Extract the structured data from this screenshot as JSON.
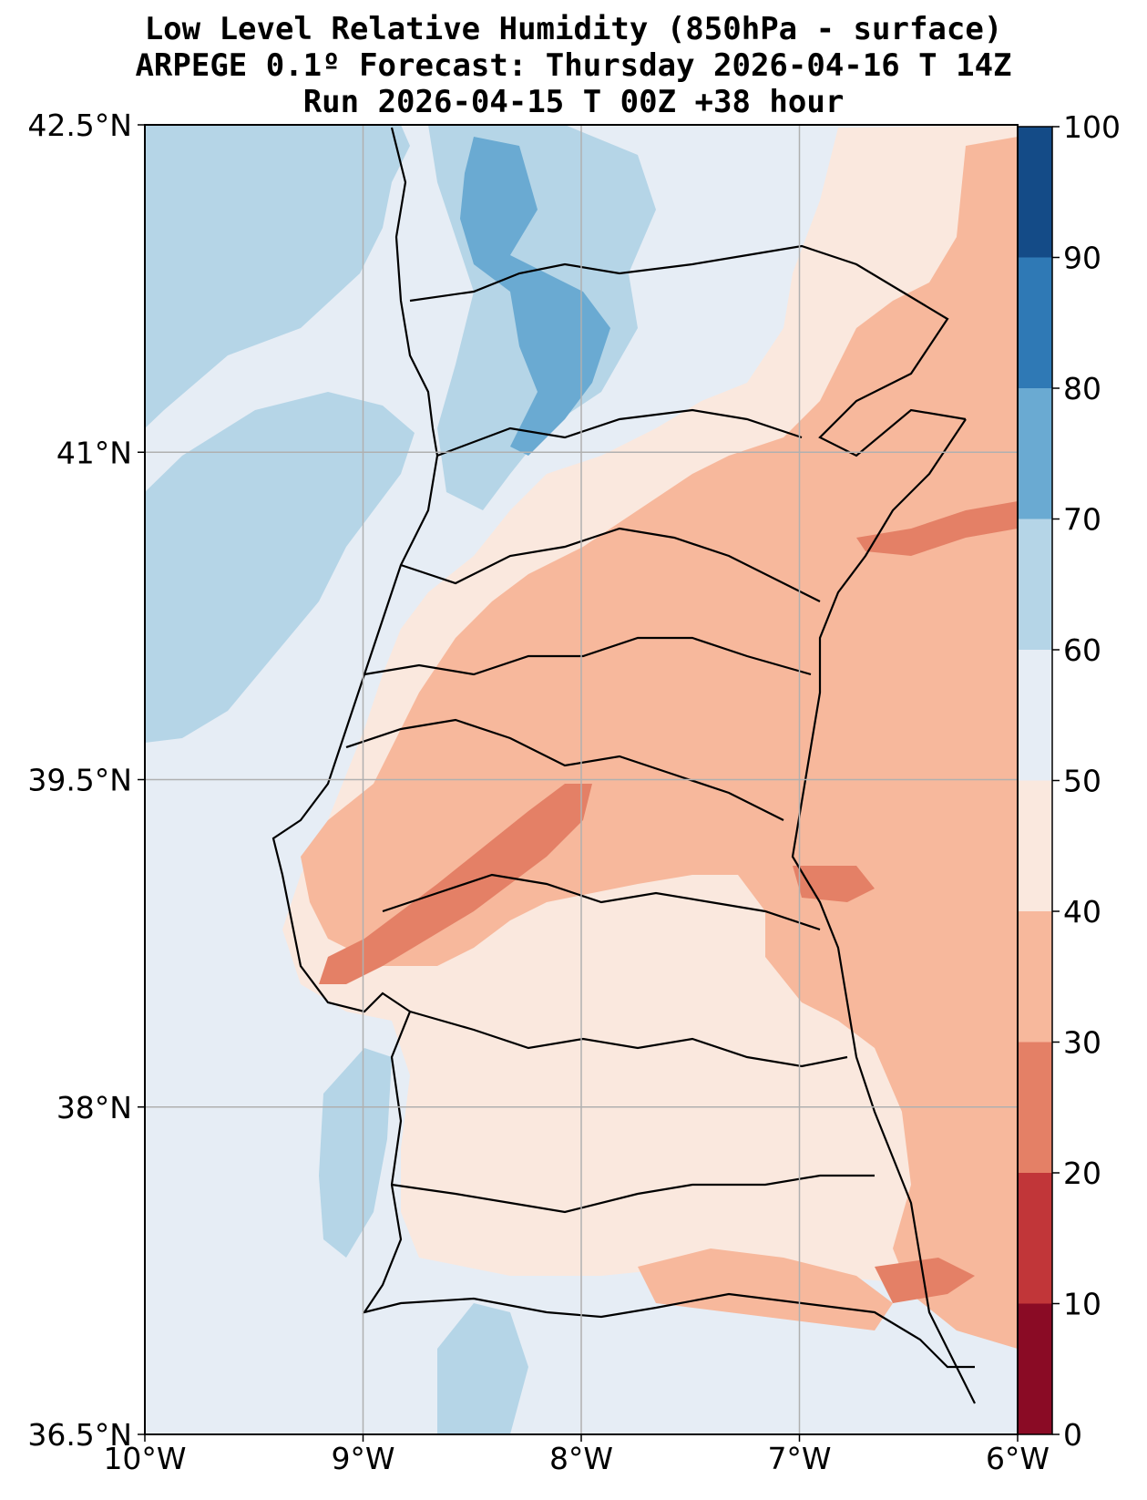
{
  "title": {
    "line1": "Low Level Relative Humidity (850hPa - surface)",
    "line2": "ARPEGE 0.1º Forecast: Thursday 2026-04-16 T 14Z",
    "line3": "Run 2026-04-15 T 00Z +38 hour"
  },
  "map": {
    "lon_range": [
      -10,
      -6
    ],
    "lat_range": [
      36.5,
      42.5
    ],
    "lon_ticks": [
      {
        "value": -10,
        "label": "10°W"
      },
      {
        "value": -9,
        "label": "9°W"
      },
      {
        "value": -8,
        "label": "8°W"
      },
      {
        "value": -7,
        "label": "7°W"
      },
      {
        "value": -6,
        "label": "6°W"
      }
    ],
    "lat_ticks": [
      {
        "value": 42.5,
        "label": "42.5°N"
      },
      {
        "value": 41,
        "label": "41°N"
      },
      {
        "value": 39.5,
        "label": "39.5°N"
      },
      {
        "value": 38,
        "label": "38°N"
      },
      {
        "value": 36.5,
        "label": "36.5°N"
      }
    ],
    "gridlines": true
  },
  "colorbar": {
    "levels": [
      0,
      10,
      20,
      30,
      40,
      50,
      60,
      70,
      80,
      90,
      100
    ],
    "labels": [
      "0",
      "10",
      "20",
      "30",
      "40",
      "50",
      "60",
      "70",
      "80",
      "90",
      "100"
    ],
    "colors": [
      "#8a0b25",
      "#c13639",
      "#e48066",
      "#f7b89c",
      "#fae8de",
      "#e6edf5",
      "#b5d5e7",
      "#6aaad2",
      "#2f79b5",
      "#144b87"
    ]
  }
}
